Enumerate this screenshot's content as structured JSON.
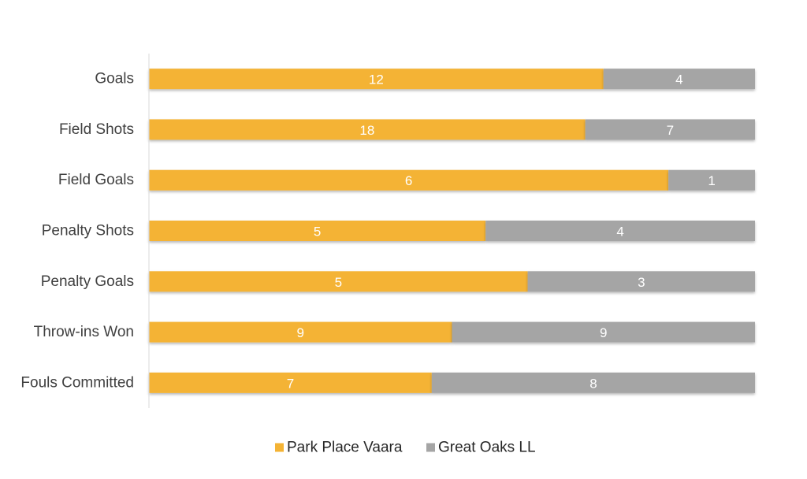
{
  "chart_data": {
    "type": "bar",
    "orientation": "horizontal",
    "stacking": "percent",
    "categories": [
      "Goals",
      "Field Shots",
      "Field Goals",
      "Penalty Shots",
      "Penalty Goals",
      "Throw-ins Won",
      "Fouls Committed"
    ],
    "series": [
      {
        "name": "Park Place Vaara",
        "color": "#F4B334",
        "values": [
          12,
          18,
          6,
          5,
          5,
          9,
          7
        ]
      },
      {
        "name": "Great Oaks LL",
        "color": "#A5A5A5",
        "values": [
          4,
          7,
          1,
          4,
          3,
          9,
          8
        ]
      }
    ],
    "data_labels": true,
    "grid": false,
    "legend_position": "bottom"
  }
}
